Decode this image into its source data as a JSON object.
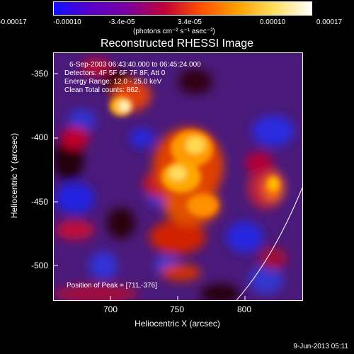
{
  "colorbar": {
    "ticks": [
      "-0.00017",
      "-0.00010",
      "-3.4e-05",
      "3.4e-05",
      "0.00010",
      "0.00017"
    ],
    "unit_text": "(photons cm⁻² s⁻¹ asec⁻²)",
    "colors": [
      "#1010ff",
      "#5a00c8",
      "#7a00a0",
      "#c0003a",
      "#ff5000",
      "#ffa000",
      "#ffe060",
      "#ffffff"
    ]
  },
  "title": "Reconstructed RHESSI Image",
  "info": {
    "line1": "6-Sep-2003 06:43:40.000 to 06:45:24.000",
    "line2": "Detectors: 4F 5F 6F 7F 8F, Att 0",
    "line3": "Energy Range: 12.0 - 25.0 keV",
    "line4": "Clean     Total counts: 862.",
    "peak": "Position of Peak = [711,-376]"
  },
  "axes": {
    "xlabel": "Heliocentric X (arcsec)",
    "ylabel": "Heliocentric Y (arcsec)",
    "xticks": [
      "700",
      "750",
      "800"
    ],
    "yticks": [
      "-350",
      "-400",
      "-450",
      "-500"
    ]
  },
  "footer": {
    "date": "9-Jun-2013 05:11"
  }
}
